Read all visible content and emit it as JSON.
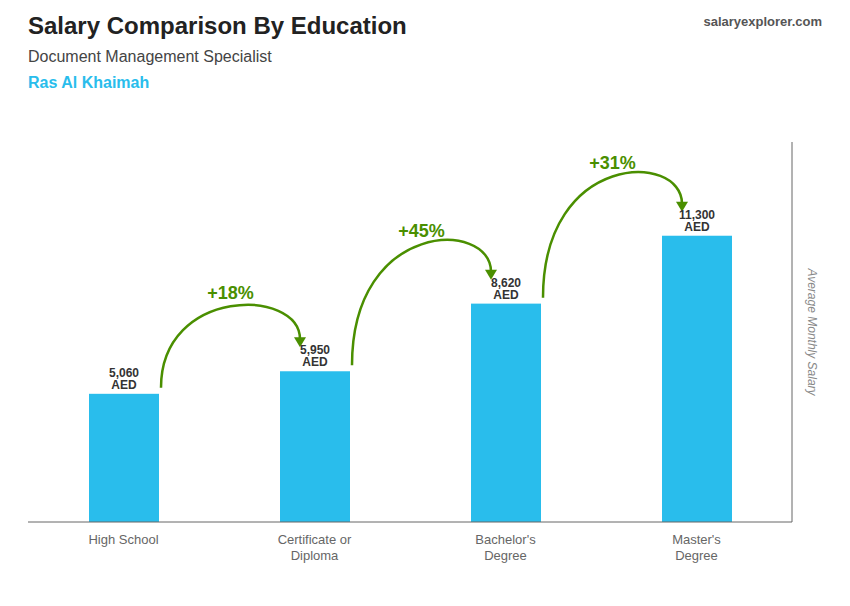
{
  "chart_data": {
    "type": "bar",
    "title": "Salary Comparison By Education",
    "subtitle": "Document Management Specialist",
    "location": "Ras Al Khaimah",
    "watermark": "salaryexplorer.com",
    "ylabel": "Average Monthly Salary",
    "categories": [
      "High School",
      "Certificate or\nDiploma",
      "Bachelor's\nDegree",
      "Master's\nDegree"
    ],
    "values": [
      5060,
      5950,
      8620,
      11300
    ],
    "value_labels": [
      "5,060 AED",
      "5,950 AED",
      "8,620 AED",
      "11,300 AED"
    ],
    "data_labels": true,
    "annotations": [
      "+18%",
      "+45%",
      "+31%"
    ],
    "color": "#29BDEC",
    "ylim": [
      0,
      15000
    ],
    "tick_labels": "x",
    "grid": false
  }
}
